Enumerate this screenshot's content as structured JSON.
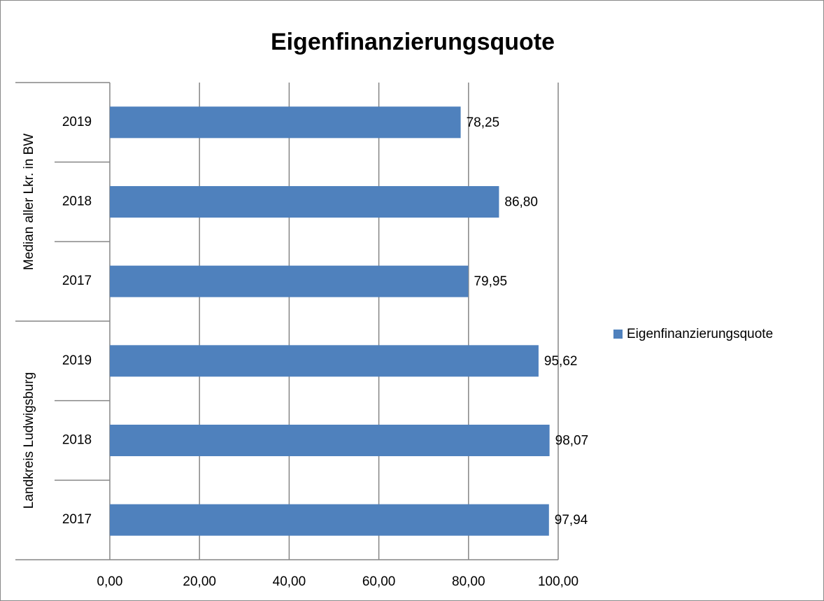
{
  "chart_data": {
    "type": "hbar",
    "title": "Eigenfinanzierungsquote",
    "category_groups": [
      {
        "name": "Landkreis Ludwigsburg",
        "categories": [
          "2017",
          "2018",
          "2019"
        ]
      },
      {
        "name": "Median aller Lkr. in BW",
        "categories": [
          "2017",
          "2018",
          "2019"
        ]
      }
    ],
    "series": [
      {
        "name": "Eigenfinanzierungsquote",
        "color": "#4f81bd",
        "values": [
          97.94,
          98.07,
          95.62,
          79.95,
          86.8,
          78.25
        ],
        "value_labels": [
          "97,94",
          "98,07",
          "95,62",
          "79,95",
          "86,80",
          "78,25"
        ]
      }
    ],
    "xlim": [
      0,
      100
    ],
    "xticks": [
      {
        "value": 0,
        "label": "0,00"
      },
      {
        "value": 20,
        "label": "20,00"
      },
      {
        "value": 40,
        "label": "40,00"
      },
      {
        "value": 60,
        "label": "60,00"
      },
      {
        "value": 80,
        "label": "80,00"
      },
      {
        "value": 100,
        "label": "100,00"
      }
    ],
    "grid": true,
    "legend": "right"
  }
}
